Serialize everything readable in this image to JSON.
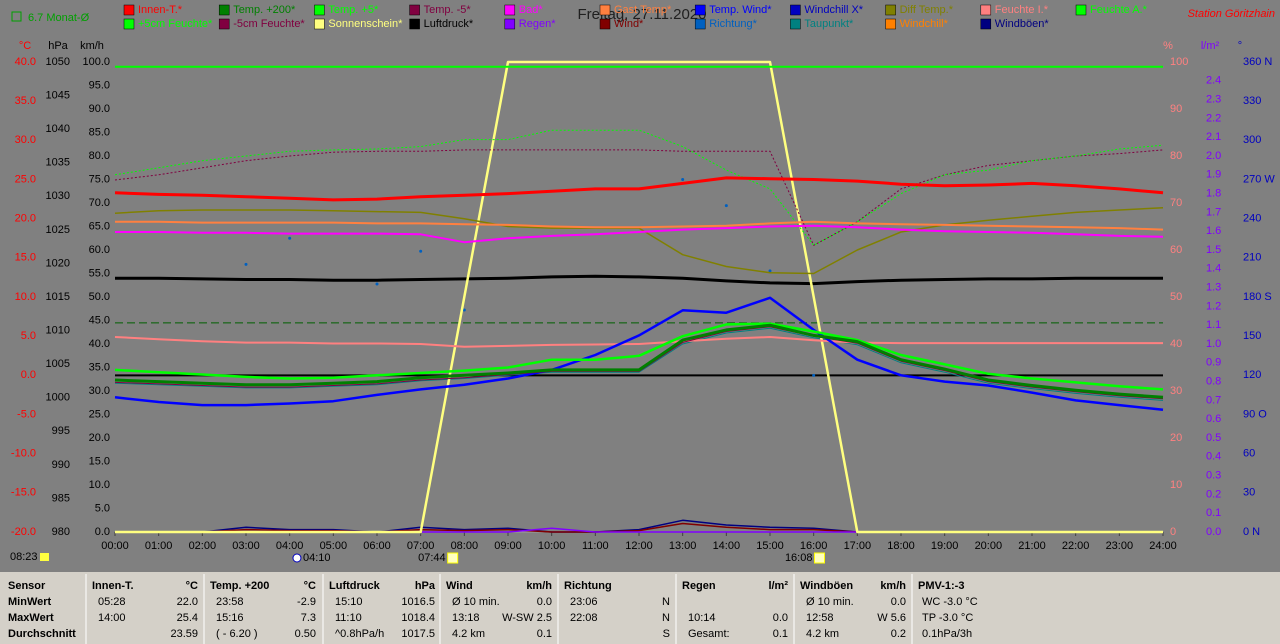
{
  "chart_data": {
    "type": "line",
    "title": "Freitag, 27.11.2020",
    "station": "Station Göritzhain",
    "monthly_average": {
      "label": "6.7 Monat-Ø",
      "value": 6.7,
      "color": "#006000"
    },
    "zero_line": true,
    "grid": false,
    "x": [
      0,
      1,
      2,
      3,
      4,
      5,
      6,
      7,
      8,
      9,
      10,
      11,
      12,
      13,
      14,
      15,
      16,
      17,
      18,
      19,
      20,
      21,
      22,
      23,
      24
    ],
    "xlim": [
      0,
      24
    ],
    "xticks": [
      {
        "value": 0,
        "label": "00:00"
      },
      {
        "value": 1,
        "label": "01:00"
      },
      {
        "value": 2,
        "label": "02:00"
      },
      {
        "value": 3,
        "label": "03:00"
      },
      {
        "value": 4,
        "label": "04:00"
      },
      {
        "value": 5,
        "label": "05:00"
      },
      {
        "value": 6,
        "label": "06:00"
      },
      {
        "value": 7,
        "label": "07:00"
      },
      {
        "value": 8,
        "label": "08:00"
      },
      {
        "value": 9,
        "label": "09:00"
      },
      {
        "value": 10,
        "label": "10:00"
      },
      {
        "value": 11,
        "label": "11:00"
      },
      {
        "value": 12,
        "label": "12:00"
      },
      {
        "value": 13,
        "label": "13:00"
      },
      {
        "value": 14,
        "label": "14:00"
      },
      {
        "value": 15,
        "label": "15:00"
      },
      {
        "value": 16,
        "label": "16:00"
      },
      {
        "value": 17,
        "label": "17:00"
      },
      {
        "value": 18,
        "label": "18:00"
      },
      {
        "value": 19,
        "label": "19:00"
      },
      {
        "value": 20,
        "label": "20:00"
      },
      {
        "value": 21,
        "label": "21:00"
      },
      {
        "value": 22,
        "label": "22:00"
      },
      {
        "value": 23,
        "label": "23:00"
      },
      {
        "value": 24,
        "label": "24:00"
      }
    ],
    "ylabel": "°C",
    "ycolor": "#ff0000",
    "ylim": [
      -20,
      40
    ],
    "yticks": [
      {
        "value": -20,
        "label": "-20.0"
      },
      {
        "value": -15,
        "label": "-15.0"
      },
      {
        "value": -10,
        "label": "-10.0"
      },
      {
        "value": -5,
        "label": "-5.0"
      },
      {
        "value": 0,
        "label": "0.0"
      },
      {
        "value": 5,
        "label": "5.0"
      },
      {
        "value": 10,
        "label": "10.0"
      },
      {
        "value": 15,
        "label": "15.0"
      },
      {
        "value": 20,
        "label": "20.0"
      },
      {
        "value": 25,
        "label": "25.0"
      },
      {
        "value": 30,
        "label": "30.0"
      },
      {
        "value": 35,
        "label": "35.0"
      },
      {
        "value": 40,
        "label": "40.0"
      }
    ],
    "y2label": "hPa",
    "y2color": "#000000",
    "y2lim": [
      980,
      1050
    ],
    "y2ticks": [
      980,
      985,
      990,
      995,
      1000,
      1005,
      1010,
      1015,
      1020,
      1025,
      1030,
      1035,
      1040,
      1045,
      1050
    ],
    "y3label": "km/h",
    "y3color": "#000000",
    "y3lim": [
      0,
      100
    ],
    "y3ticks": [
      {
        "value": 0,
        "label": "0.0"
      },
      {
        "value": 5,
        "label": "5.0"
      },
      {
        "value": 10,
        "label": "10.0"
      },
      {
        "value": 15,
        "label": "15.0"
      },
      {
        "value": 20,
        "label": "20.0"
      },
      {
        "value": 25,
        "label": "25.0"
      },
      {
        "value": 30,
        "label": "30.0"
      },
      {
        "value": 35,
        "label": "35.0"
      },
      {
        "value": 40,
        "label": "40.0"
      },
      {
        "value": 45,
        "label": "45.0"
      },
      {
        "value": 50,
        "label": "50.0"
      },
      {
        "value": 55,
        "label": "55.0"
      },
      {
        "value": 60,
        "label": "60.0"
      },
      {
        "value": 65,
        "label": "65.0"
      },
      {
        "value": 70,
        "label": "70.0"
      },
      {
        "value": 75,
        "label": "75.0"
      },
      {
        "value": 80,
        "label": "80.0"
      },
      {
        "value": 85,
        "label": "85.0"
      },
      {
        "value": 90,
        "label": "90.0"
      },
      {
        "value": 95,
        "label": "95.0"
      },
      {
        "value": 100,
        "label": "100.0"
      }
    ],
    "y4label": "%",
    "y4color": "#ff8080",
    "y4lim": [
      0,
      100
    ],
    "y4ticks": [
      0,
      10,
      20,
      30,
      40,
      50,
      60,
      70,
      80,
      90,
      100
    ],
    "y5label": "l/m²",
    "y5color": "#8000ff",
    "y5lim": [
      0,
      2.5
    ],
    "y5ticks": [
      {
        "value": 0,
        "label": "0.0"
      },
      0.1,
      0.2,
      0.3,
      0.4,
      0.5,
      0.6,
      0.7,
      0.8,
      0.9,
      {
        "value": 1,
        "label": "1.0"
      },
      1.1,
      1.2,
      1.3,
      1.4,
      1.5,
      1.6,
      1.7,
      1.8,
      1.9,
      {
        "value": 2,
        "label": "2.0"
      },
      2.1,
      2.2,
      2.3,
      2.4
    ],
    "y6label": "°",
    "y6color": "#0000c0",
    "y6lim": [
      0,
      360
    ],
    "y6ticks": [
      {
        "value": 0,
        "label": "0 N"
      },
      30,
      60,
      {
        "value": 90,
        "label": "90 O"
      },
      120,
      150,
      {
        "value": 180,
        "label": "180 S"
      },
      210,
      240,
      {
        "value": 270,
        "label": "270 W"
      },
      300,
      330,
      {
        "value": 360,
        "label": "360 N"
      }
    ],
    "series": [
      {
        "name": "Innen-T.*",
        "color": "#ff0000",
        "axis": "y",
        "values": [
          23.3,
          23.1,
          23.0,
          22.8,
          22.6,
          22.4,
          22.5,
          22.8,
          23.0,
          23.2,
          23.5,
          23.8,
          23.8,
          24.5,
          25.2,
          25.1,
          25.0,
          24.8,
          24.4,
          24.2,
          24.3,
          24.5,
          24.2,
          23.8,
          23.3
        ]
      },
      {
        "name": "Temp. +200*",
        "color": "#008000",
        "axis": "y",
        "values": [
          -0.6,
          -0.8,
          -1.0,
          -1.2,
          -1.2,
          -1.0,
          -0.8,
          -0.3,
          0.0,
          0.3,
          0.7,
          0.7,
          0.7,
          4.5,
          5.8,
          6.4,
          5.1,
          4.3,
          2.0,
          0.8,
          -0.6,
          -1.3,
          -1.9,
          -2.4,
          -2.8
        ]
      },
      {
        "name": "Temp. +5*",
        "color": "#00ff00",
        "axis": "y",
        "values": [
          0.7,
          0.4,
          0.1,
          -0.2,
          -0.4,
          -0.3,
          0.0,
          0.3,
          0.6,
          1.0,
          2.0,
          2.0,
          2.5,
          5.0,
          6.5,
          6.6,
          5.6,
          4.5,
          2.6,
          1.4,
          0.2,
          -0.4,
          -0.9,
          -1.4,
          -1.8
        ]
      },
      {
        "name": "Temp. -5*",
        "color": "#800040",
        "axis": "y",
        "values": [
          -0.9,
          -1.1,
          -1.3,
          -1.5,
          -1.5,
          -1.3,
          -1.1,
          -0.6,
          -0.3,
          0.1,
          0.5,
          0.5,
          0.5,
          4.2,
          5.6,
          6.2,
          5.0,
          4.1,
          1.8,
          0.6,
          -0.8,
          -1.5,
          -2.1,
          -2.6,
          -3.0
        ]
      },
      {
        "name": "Bad*",
        "color": "#ff00ff",
        "axis": "y",
        "values": [
          18.3,
          18.3,
          18.2,
          18.2,
          18.1,
          18.1,
          18.1,
          18.0,
          17.0,
          17.5,
          17.8,
          18.0,
          18.3,
          18.6,
          18.8,
          19.0,
          19.1,
          18.9,
          18.6,
          18.4,
          18.3,
          18.2,
          18.0,
          17.8,
          17.7
        ]
      },
      {
        "name": "Gast Temp*",
        "color": "#ff8040",
        "axis": "y",
        "values": [
          19.6,
          19.6,
          19.5,
          19.5,
          19.5,
          19.5,
          19.4,
          19.4,
          19.3,
          19.2,
          19.0,
          18.9,
          18.9,
          19.0,
          19.1,
          19.4,
          19.6,
          19.4,
          19.3,
          19.2,
          19.1,
          19.0,
          18.9,
          18.8,
          18.6
        ]
      },
      {
        "name": "Temp. Wind*",
        "color": "#0000ff",
        "axis": "y",
        "values": [
          -2.8,
          -3.4,
          -3.8,
          -3.8,
          -3.6,
          -3.3,
          -2.5,
          -1.8,
          -1.2,
          -0.4,
          0.7,
          2.6,
          5.1,
          8.3,
          8.0,
          9.9,
          5.8,
          2.0,
          0.0,
          -0.8,
          -1.3,
          -2.2,
          -3.2,
          -3.8,
          -4.4
        ]
      },
      {
        "name": "Windchill X*",
        "color": "#0000c0",
        "axis": "y",
        "values": [
          -2.8,
          -3.4,
          -3.8,
          -3.8,
          -3.6,
          -3.3,
          -2.5,
          -1.8,
          -1.2,
          -0.4,
          0.7,
          2.6,
          5.1,
          8.3,
          8.0,
          9.9,
          5.8,
          2.0,
          0.0,
          -0.8,
          -1.3,
          -2.2,
          -3.2,
          -3.8,
          -4.4
        ]
      },
      {
        "name": "Diff Temp.*",
        "color": "#808000",
        "axis": "y",
        "values": [
          20.7,
          21.0,
          21.1,
          21.1,
          21.1,
          21.0,
          20.9,
          20.8,
          20.0,
          19.0,
          18.8,
          18.8,
          18.8,
          15.4,
          13.9,
          13.1,
          13.0,
          16.0,
          18.3,
          19.2,
          19.8,
          20.3,
          20.8,
          21.1,
          21.4
        ]
      },
      {
        "name": "Feuchte I.*",
        "color": "#ff8080",
        "axis": "y4",
        "values": [
          41.5,
          41.0,
          40.6,
          40.3,
          40.3,
          40.1,
          40.1,
          40.0,
          39.4,
          39.6,
          39.8,
          39.9,
          40.0,
          40.6,
          41.1,
          41.5,
          40.8,
          40.3,
          40.2,
          40.2,
          40.2,
          40.2,
          40.2,
          40.2,
          40.2
        ]
      },
      {
        "name": "Feuchte A.*",
        "color": "#00ff00",
        "axis": "y4",
        "dash": "dotted",
        "values": [
          76,
          77.5,
          79,
          80,
          81,
          81.3,
          81.5,
          82,
          83.5,
          83.5,
          85.5,
          85.5,
          85.5,
          82,
          77,
          73,
          61,
          66,
          72,
          76,
          77,
          79,
          80,
          81.5,
          82.3
        ]
      },
      {
        "name": "+5cm Feuchte*",
        "color": "#00ff00",
        "axis": "y4",
        "values": [
          99,
          99,
          99,
          99,
          99,
          99,
          99,
          99,
          99,
          99,
          99,
          99,
          99,
          99,
          99,
          99,
          99,
          99,
          99,
          99,
          99,
          99,
          99,
          99,
          99
        ]
      },
      {
        "name": "-5cm Feuchte*",
        "color": "#800040",
        "axis": "y4",
        "dash": "dotted",
        "values": [
          74.9,
          76,
          77.5,
          79,
          80,
          80.8,
          81,
          81,
          81.3,
          81.3,
          81.3,
          81.3,
          81.3,
          81,
          81,
          81,
          61,
          66,
          73,
          76,
          78,
          79,
          80,
          80.5,
          81.3
        ]
      },
      {
        "name": "Sonnenschein*",
        "color": "#ffff80",
        "axis": "y4",
        "values": [
          0,
          0,
          0,
          0,
          0,
          0,
          0,
          0,
          50,
          100,
          100,
          100,
          100,
          100,
          100,
          100,
          50,
          0,
          0,
          0,
          0,
          0,
          0,
          0,
          0
        ]
      },
      {
        "name": "Luftdruck*",
        "color": "#000000",
        "axis": "y2",
        "values": [
          1017.8,
          1017.8,
          1017.7,
          1017.6,
          1017.6,
          1017.5,
          1017.5,
          1017.6,
          1017.7,
          1017.8,
          1018.0,
          1018.1,
          1018.0,
          1017.8,
          1017.4,
          1017.1,
          1017.0,
          1017.3,
          1017.5,
          1017.6,
          1017.7,
          1017.7,
          1017.8,
          1017.8,
          1017.8
        ]
      },
      {
        "name": "Regen*",
        "color": "#8000ff",
        "axis": "y5",
        "values": [
          0,
          0,
          0,
          0,
          0,
          0,
          0,
          0,
          0,
          0,
          0.02,
          0,
          0,
          0,
          0,
          0,
          0,
          0,
          0,
          0,
          0,
          0,
          0,
          0,
          0
        ]
      },
      {
        "name": "Wind*",
        "color": "#800000",
        "axis": "y3",
        "values": [
          0,
          0,
          0,
          0.5,
          0.3,
          0.3,
          0,
          0.5,
          0.3,
          0.5,
          0,
          0,
          0.3,
          1.8,
          1.0,
          0.5,
          0.5,
          0,
          0,
          0,
          0,
          0,
          0,
          0,
          0
        ]
      },
      {
        "name": "Richtung*",
        "color": "#0060c0",
        "axis": "y6",
        "marker": "points",
        "values": [
          null,
          null,
          null,
          205,
          225,
          null,
          190,
          215,
          170,
          null,
          null,
          null,
          null,
          270,
          250,
          200,
          120,
          null,
          null,
          null,
          null,
          null,
          null,
          null,
          null
        ]
      },
      {
        "name": "Taupunkt*",
        "color": "#008080",
        "axis": "y",
        "values": [
          -1.0,
          -1.2,
          -1.4,
          -1.6,
          -1.6,
          -1.4,
          -1.2,
          -0.7,
          -0.4,
          0.0,
          0.4,
          0.4,
          0.4,
          4.0,
          5.4,
          6.0,
          4.8,
          3.9,
          1.6,
          0.4,
          -1.0,
          -1.7,
          -2.3,
          -2.8,
          -3.2
        ]
      },
      {
        "name": "Windchill*",
        "color": "#ff8000",
        "axis": "y",
        "values": [
          -0.6,
          -0.8,
          -1.0,
          -1.2,
          -1.2,
          -1.0,
          -0.8,
          -0.3,
          0.0,
          0.3,
          0.7,
          0.7,
          0.7,
          4.5,
          5.8,
          6.4,
          5.1,
          4.3,
          2.0,
          0.8,
          -0.6,
          -1.3,
          -1.9,
          -2.4,
          -2.8
        ]
      },
      {
        "name": "Windböen*",
        "color": "#000080",
        "axis": "y3",
        "values": [
          0,
          0,
          0,
          1.0,
          0.5,
          0.5,
          0,
          1.0,
          0.5,
          0.8,
          0,
          0,
          0.5,
          2.5,
          1.5,
          1.0,
          0.8,
          0,
          0,
          0,
          0,
          0,
          0,
          0,
          0
        ]
      }
    ],
    "day_length": "08:23",
    "annotations": [
      {
        "label": "04:10",
        "x": 4.167,
        "icon": "moon"
      },
      {
        "label": "07:44",
        "x": 7.733,
        "icon": "sun"
      },
      {
        "label": "16:08",
        "x": 16.133,
        "icon": "sun"
      }
    ],
    "stats_table": [
      {
        "header": [
          "Sensor"
        ],
        "rows": [
          [
            "MinWert"
          ],
          [
            "MaxWert"
          ],
          [
            "Durchschnitt"
          ]
        ]
      },
      {
        "header": [
          "Innen-T.",
          "°C"
        ],
        "rows": [
          [
            "05:28",
            "22.0"
          ],
          [
            "14:00",
            "25.4"
          ],
          [
            null,
            "23.59"
          ]
        ]
      },
      {
        "header": [
          "Temp. +200",
          "°C"
        ],
        "rows": [
          [
            "23:58",
            "-2.9"
          ],
          [
            "15:16",
            "7.3"
          ],
          [
            "( - 6.20 )",
            "0.50"
          ]
        ]
      },
      {
        "header": [
          "Luftdruck",
          "hPa"
        ],
        "rows": [
          [
            "15:10",
            "1016.5"
          ],
          [
            "11:10",
            "1018.4"
          ],
          [
            "^0.8hPa/h",
            "1017.5"
          ]
        ]
      },
      {
        "header": [
          "Wind",
          "km/h"
        ],
        "rows": [
          [
            "Ø 10 min.",
            "0.0"
          ],
          [
            "13:18",
            "W-SW 2.5"
          ],
          [
            "4.2 km",
            "0.1"
          ]
        ]
      },
      {
        "header": [
          "Richtung"
        ],
        "rows": [
          [
            "23:06",
            "N"
          ],
          [
            "22:08",
            "N"
          ],
          [
            null,
            "S"
          ]
        ]
      },
      {
        "header": [
          "Regen",
          "l/m²"
        ],
        "rows": [
          [
            null,
            null
          ],
          [
            "10:14",
            "0.0"
          ],
          [
            "Gesamt:",
            "0.1"
          ]
        ]
      },
      {
        "header": [
          "Windböen",
          "km/h"
        ],
        "rows": [
          [
            "Ø 10 min.",
            "0.0"
          ],
          [
            "12:58",
            "W 5.6"
          ],
          [
            "4.2 km",
            "0.2"
          ]
        ]
      },
      {
        "header": [
          "PMV-1:-3"
        ],
        "rows": [
          [
            "WC -3.0 °C"
          ],
          [
            "TP -3.0 °C"
          ],
          [
            "0.1hPa/3h"
          ]
        ]
      }
    ]
  }
}
